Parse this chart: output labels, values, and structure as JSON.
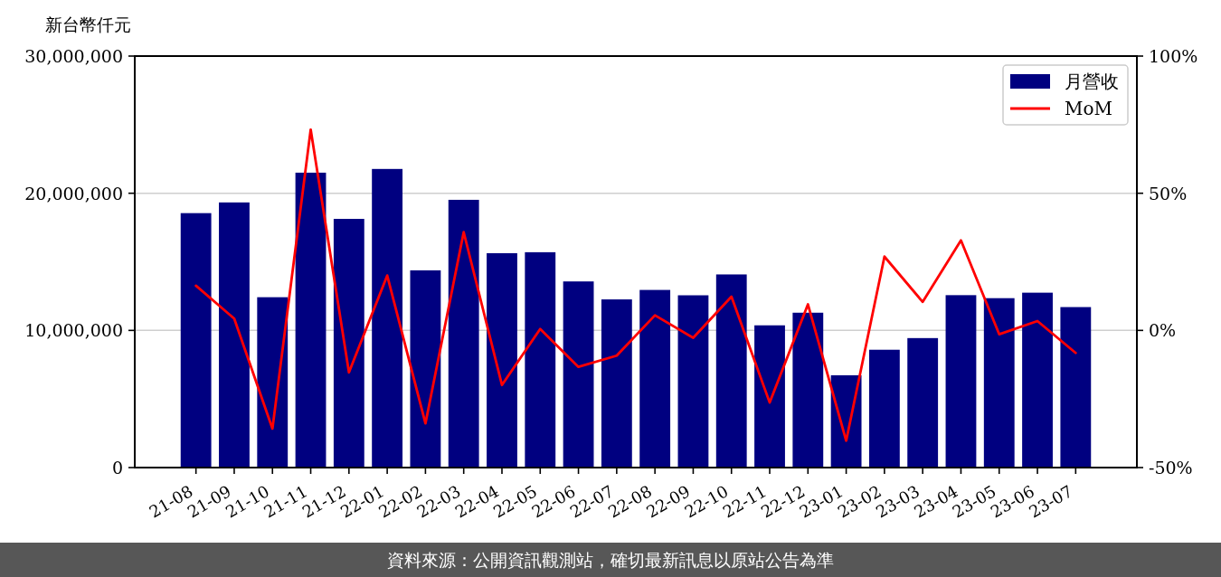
{
  "chart_data": {
    "type": "bar",
    "ylabel": "新台幣仟元",
    "categories": [
      "21-08",
      "21-09",
      "21-10",
      "21-11",
      "21-12",
      "22-01",
      "22-02",
      "22-03",
      "22-04",
      "22-05",
      "22-06",
      "22-07",
      "22-08",
      "22-09",
      "22-10",
      "22-11",
      "22-12",
      "23-01",
      "23-02",
      "23-03",
      "23-04",
      "23-05",
      "23-06",
      "23-07"
    ],
    "series": [
      {
        "name": "月營收",
        "color": "#000080",
        "values": [
          18550000,
          19330000,
          12420000,
          21500000,
          18130000,
          21770000,
          14380000,
          19520000,
          15630000,
          15700000,
          13570000,
          12260000,
          12950000,
          12560000,
          14080000,
          10370000,
          11290000,
          6730000,
          8590000,
          9440000,
          12570000,
          12350000,
          12750000,
          11700000
        ]
      },
      {
        "name": "MoM",
        "type": "line",
        "axis": "y2",
        "color": "#ff0000",
        "values": [
          16.3,
          4.3,
          -35.8,
          73.2,
          -15.3,
          20.0,
          -33.9,
          35.8,
          -19.9,
          0.5,
          -13.3,
          -9.2,
          5.5,
          -2.7,
          12.3,
          -26.3,
          9.5,
          -40.2,
          26.9,
          10.4,
          32.8,
          -1.4,
          3.4,
          -8.2
        ]
      }
    ],
    "ylim": [
      0,
      30000000
    ],
    "yticks": [
      {
        "value": 0,
        "label": "0"
      },
      {
        "value": 10000000,
        "label": "10,000,000"
      },
      {
        "value": 20000000,
        "label": "20,000,000"
      },
      {
        "value": 30000000,
        "label": "30,000,000"
      }
    ],
    "y2lim": [
      -50,
      100
    ],
    "y2ticks": [
      {
        "value": -50,
        "label": "-50%"
      },
      {
        "value": 0,
        "label": "0%"
      },
      {
        "value": 50,
        "label": "50%"
      },
      {
        "value": 100,
        "label": "100%"
      }
    ],
    "grid": "y",
    "legend": "top right",
    "annotations": [
      "資料來源：公開資訊觀測站，確切最新訊息以原站公告為準"
    ]
  }
}
